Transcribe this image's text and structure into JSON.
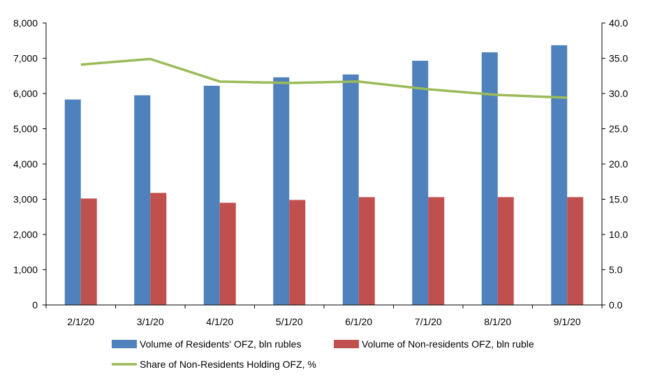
{
  "chart_data": {
    "type": "bar",
    "categories": [
      "2/1/20",
      "3/1/20",
      "4/1/20",
      "5/1/20",
      "6/1/20",
      "7/1/20",
      "8/1/20",
      "9/1/20"
    ],
    "series": [
      {
        "name": "Volume of Residents' OFZ, bln rubles",
        "type": "bar",
        "axis": "left",
        "color": "#4f81bd",
        "values": [
          5830,
          5950,
          6220,
          6460,
          6540,
          6930,
          7170,
          7370
        ]
      },
      {
        "name": "Volume of Non-residents OFZ, bln ruble",
        "type": "bar",
        "axis": "left",
        "color": "#c0504d",
        "values": [
          3020,
          3180,
          2900,
          2980,
          3060,
          3060,
          3060,
          3060
        ]
      },
      {
        "name": "Share of Non-Residents Holding OFZ, %",
        "type": "line",
        "axis": "right",
        "color": "#9bbb59",
        "values": [
          34.1,
          34.9,
          31.7,
          31.5,
          31.7,
          30.6,
          29.8,
          29.4
        ]
      }
    ],
    "y_left": {
      "min": 0,
      "max": 8000,
      "step": 1000,
      "tick_labels": [
        "0",
        "1,000",
        "2,000",
        "3,000",
        "4,000",
        "5,000",
        "6,000",
        "7,000",
        "8,000"
      ]
    },
    "y_right": {
      "min": 0,
      "max": 40,
      "step": 5,
      "tick_labels": [
        "0.0",
        "5.0",
        "10.0",
        "15.0",
        "20.0",
        "25.0",
        "30.0",
        "35.0",
        "40.0"
      ]
    },
    "grid": false,
    "legend_position": "bottom"
  }
}
